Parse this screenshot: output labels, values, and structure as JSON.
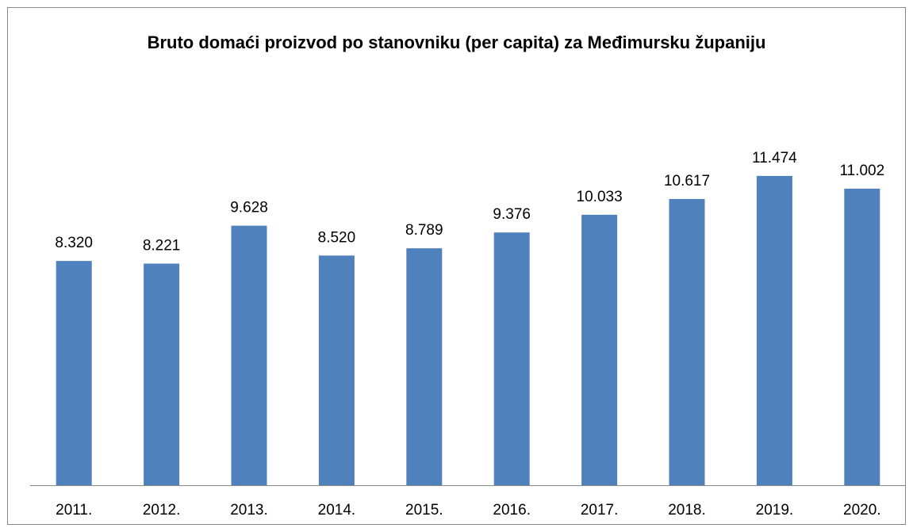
{
  "chart_data": {
    "type": "bar",
    "title": "Bruto domaći proizvod po stanovniku (per capita) za Međimursku županiju",
    "categories": [
      "2011.",
      "2012.",
      "2013.",
      "2014.",
      "2015.",
      "2016.",
      "2017.",
      "2018.",
      "2019.",
      "2020."
    ],
    "values": [
      8320,
      8221,
      9628,
      8520,
      8789,
      9376,
      10033,
      10617,
      11474,
      11002
    ],
    "value_labels": [
      "8.320",
      "8.221",
      "9.628",
      "8.520",
      "8.789",
      "9.376",
      "10.033",
      "10.617",
      "11.474",
      "11.002"
    ],
    "color": "#4f81bd",
    "ylim": [
      0,
      14000
    ]
  }
}
